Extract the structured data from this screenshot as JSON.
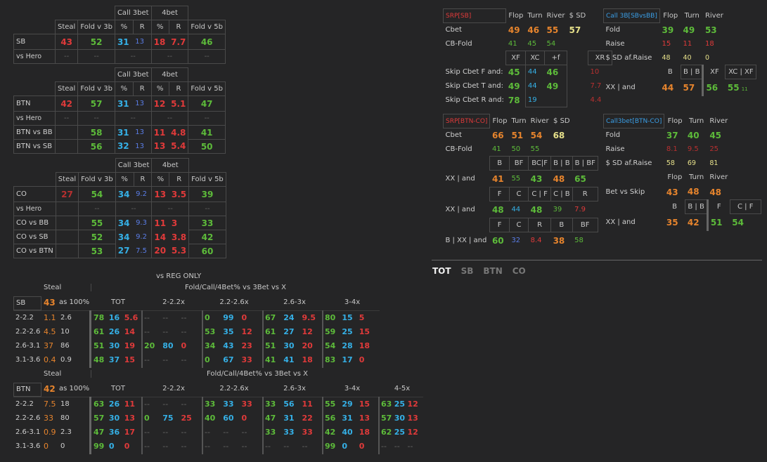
{
  "left": {
    "t1": {
      "call3bet": "Call 3bet",
      "bet4": "4bet",
      "h": [
        "Steal",
        "Fold v 3b",
        "%",
        "R",
        "%",
        "R",
        "Fold v 5b"
      ],
      "rows": [
        {
          "pos": "SB",
          "steal": "43",
          "f3": "52",
          "c3p": "31",
          "c3r": "13",
          "b4p": "18",
          "b4r": "7.7",
          "f5": "46"
        },
        {
          "pos": "vs Hero",
          "steal": "--",
          "f3": "--",
          "c3p": "--",
          "b4p": "--",
          "f5": "--"
        }
      ]
    },
    "t2": {
      "call3bet": "Call 3bet",
      "bet4": "4bet",
      "h": [
        "Steal",
        "Fold v 3b",
        "%",
        "R",
        "%",
        "R",
        "Fold v 5b"
      ],
      "rows": [
        {
          "pos": "BTN",
          "steal": "42",
          "f3": "57",
          "c3p": "31",
          "c3r": "13",
          "b4p": "12",
          "b4r": "5.1",
          "f5": "47"
        },
        {
          "pos": "vs Hero",
          "steal": "--",
          "f3": "--",
          "c3p": "--",
          "b4p": "--",
          "f5": "--"
        },
        {
          "pos": "BTN vs BB",
          "f3": "58",
          "c3p": "31",
          "c3r": "13",
          "b4p": "11",
          "b4r": "4.8",
          "f5": "41"
        },
        {
          "pos": "BTN vs SB",
          "f3": "56",
          "c3p": "32",
          "c3r": "13",
          "b4p": "13",
          "b4r": "5.4",
          "f5": "50"
        }
      ]
    },
    "t3": {
      "call3bet": "Call 3bet",
      "bet4": "4bet",
      "h": [
        "Steal",
        "Fold v 3b",
        "%",
        "R",
        "%",
        "R",
        "Fold v 5b"
      ],
      "rows": [
        {
          "pos": "CO",
          "steal": "27",
          "f3": "54",
          "c3p": "34",
          "c3r": "9.2",
          "b4p": "13",
          "b4r": "3.5",
          "f5": "39"
        },
        {
          "pos": "vs Hero",
          "f3": "--",
          "c3p": "--",
          "b4p": "--",
          "f5": "--"
        },
        {
          "pos": "CO vs BB",
          "f3": "55",
          "c3p": "34",
          "c3r": "9.3",
          "b4p": "11",
          "b4r": "3",
          "f5": "33"
        },
        {
          "pos": "CO vs SB",
          "f3": "52",
          "c3p": "34",
          "c3r": "9.2",
          "b4p": "14",
          "b4r": "3.8",
          "f5": "42"
        },
        {
          "pos": "CO vs BTN",
          "f3": "53",
          "c3p": "27",
          "c3r": "7.5",
          "b4p": "20",
          "b4r": "5.3",
          "f5": "60"
        }
      ]
    }
  },
  "reg": {
    "title": "vs REG ONLY",
    "steal": "Steal",
    "fc": "Fold/Call/4Bet% vs 3Bet vs X",
    "sb": {
      "pos": "SB",
      "steal": "43",
      "as": "as 100%",
      "cols": [
        "TOT",
        "2-2.2x",
        "2.2-2.6x",
        "2.6-3x",
        "3-4x"
      ],
      "rows": [
        {
          "r": "2-2.2",
          "a": "1.1",
          "b": "2.6",
          "v": [
            [
              "78",
              "16",
              "5.6"
            ],
            [
              "--",
              "--",
              "--"
            ],
            [
              "0",
              "99",
              "0"
            ],
            [
              "67",
              "24",
              "9.5"
            ],
            [
              "80",
              "15",
              "5"
            ]
          ]
        },
        {
          "r": "2.2-2.6",
          "a": "4.5",
          "b": "10",
          "v": [
            [
              "61",
              "26",
              "14"
            ],
            [
              "--",
              "--",
              "--"
            ],
            [
              "53",
              "35",
              "12"
            ],
            [
              "61",
              "27",
              "12"
            ],
            [
              "59",
              "25",
              "15"
            ]
          ]
        },
        {
          "r": "2.6-3.1",
          "a": "37",
          "b": "86",
          "v": [
            [
              "51",
              "30",
              "19"
            ],
            [
              "20",
              "80",
              "0"
            ],
            [
              "34",
              "43",
              "23"
            ],
            [
              "51",
              "30",
              "20"
            ],
            [
              "54",
              "28",
              "18"
            ]
          ]
        },
        {
          "r": "3.1-3.6",
          "a": "0.4",
          "b": "0.9",
          "v": [
            [
              "48",
              "37",
              "15"
            ],
            [
              "--",
              "--",
              "--"
            ],
            [
              "0",
              "67",
              "33"
            ],
            [
              "41",
              "41",
              "18"
            ],
            [
              "83",
              "17",
              "0"
            ]
          ]
        }
      ]
    },
    "btn": {
      "pos": "BTN",
      "steal": "42",
      "as": "as 100%",
      "cols": [
        "TOT",
        "2-2.2x",
        "2.2-2.6x",
        "2.6-3x",
        "3-4x",
        "4-5x"
      ],
      "rows": [
        {
          "r": "2-2.2",
          "a": "7.5",
          "b": "18",
          "v": [
            [
              "63",
              "26",
              "11"
            ],
            [
              "--",
              "--",
              "--"
            ],
            [
              "33",
              "33",
              "33"
            ],
            [
              "33",
              "56",
              "11"
            ],
            [
              "55",
              "29",
              "15"
            ],
            [
              "63",
              "25",
              "12"
            ]
          ]
        },
        {
          "r": "2.2-2.6",
          "a": "33",
          "b": "80",
          "v": [
            [
              "57",
              "30",
              "13"
            ],
            [
              "0",
              "75",
              "25"
            ],
            [
              "40",
              "60",
              "0"
            ],
            [
              "47",
              "31",
              "22"
            ],
            [
              "56",
              "31",
              "13"
            ],
            [
              "57",
              "30",
              "13"
            ]
          ]
        },
        {
          "r": "2.6-3.1",
          "a": "0.9",
          "b": "2.3",
          "v": [
            [
              "47",
              "36",
              "17"
            ],
            [
              "--",
              "--",
              "--"
            ],
            [
              "--",
              "--",
              "--"
            ],
            [
              "33",
              "33",
              "33"
            ],
            [
              "42",
              "40",
              "18"
            ],
            [
              "62",
              "25",
              "12"
            ]
          ]
        },
        {
          "r": "3.1-3.6",
          "a": "0",
          "b": "0",
          "v": [
            [
              "99",
              "0",
              "0"
            ],
            [
              "--",
              "--",
              "--"
            ],
            [
              "--",
              "--",
              "--"
            ],
            [
              "--",
              "--",
              "--"
            ],
            [
              "99",
              "0",
              "0"
            ],
            [
              "--",
              "--",
              "--"
            ]
          ]
        }
      ]
    }
  },
  "srp_sb": {
    "title": "SRP[SB]",
    "h": [
      "Flop",
      "Turn",
      "River",
      "$ SD"
    ],
    "cbet": {
      "l": "Cbet",
      "v": [
        "49",
        "46",
        "55",
        "57"
      ]
    },
    "cbf": {
      "l": "CB-Fold",
      "v": [
        "41",
        "45",
        "54"
      ]
    },
    "sh": [
      "XF",
      "XC",
      "+f",
      "XR"
    ],
    "rows": [
      {
        "l": "Skip Cbet F and:",
        "v": [
          "45",
          "44",
          "46",
          "10"
        ]
      },
      {
        "l": "Skip Cbet T and:",
        "v": [
          "49",
          "44",
          "49",
          "7.7"
        ]
      },
      {
        "l": "Skip Cbet R and:",
        "v": [
          "78",
          "19",
          "",
          "4.4"
        ]
      }
    ]
  },
  "c3_sb": {
    "title": "Call 3B[SBvsBB]",
    "h": [
      "Flop",
      "Turn",
      "River"
    ],
    "rows": [
      {
        "l": "Fold",
        "v": [
          "39",
          "49",
          "53"
        ]
      },
      {
        "l": "Raise",
        "v": [
          "15",
          "11",
          "18"
        ]
      },
      {
        "l": "$ SD af.Raise",
        "v": [
          "48",
          "40",
          "0"
        ]
      }
    ],
    "sh": [
      "B",
      "B | B",
      "XF",
      "XC | XF"
    ],
    "xx": {
      "l": "XX | and",
      "v": [
        "44",
        "57",
        "56",
        "55",
        "11"
      ]
    }
  },
  "srp_btn": {
    "title": "SRP[BTN-CO]",
    "h": [
      "Flop",
      "Turn",
      "River",
      "$ SD"
    ],
    "cbet": {
      "l": "Cbet",
      "v": [
        "66",
        "51",
        "54",
        "68"
      ]
    },
    "cbf": {
      "l": "CB-Fold",
      "v": [
        "41",
        "50",
        "55"
      ]
    },
    "s1h": [
      "B",
      "BF",
      "BC|F",
      "B | B",
      "B | BF"
    ],
    "s1": {
      "l": "XX | and",
      "v": [
        "41",
        "55",
        "43",
        "48",
        "65"
      ]
    },
    "s2h": [
      "F",
      "C",
      "C | F",
      "C | B",
      "R"
    ],
    "s2": {
      "l": "XX | and",
      "v": [
        "48",
        "44",
        "48",
        "39",
        "7.9"
      ]
    },
    "s3h": [
      "F",
      "C",
      "R",
      "B",
      "BF"
    ],
    "s3": {
      "l": "B | XX | and",
      "v": [
        "60",
        "32",
        "8.4",
        "38",
        "58"
      ]
    }
  },
  "c3_btn": {
    "title": "Call3bet[BTN-CO]",
    "h": [
      "Flop",
      "Turn",
      "River"
    ],
    "rows": [
      {
        "l": "Fold",
        "v": [
          "37",
          "40",
          "45"
        ]
      },
      {
        "l": "Raise",
        "v": [
          "8.1",
          "9.5",
          "25"
        ]
      },
      {
        "l": "$ SD af.Raise",
        "v": [
          "58",
          "69",
          "81"
        ]
      }
    ],
    "bh": [
      "Flop",
      "Turn",
      "River"
    ],
    "bs": {
      "l": "Bet vs Skip",
      "v": [
        "43",
        "48",
        "48"
      ]
    },
    "sh": [
      "B",
      "B | B",
      "F",
      "C | F"
    ],
    "xx": {
      "l": "XX | and",
      "v": [
        "35",
        "42",
        "51",
        "54"
      ]
    }
  },
  "tabs": [
    "TOT",
    "SB",
    "BTN",
    "CO"
  ]
}
